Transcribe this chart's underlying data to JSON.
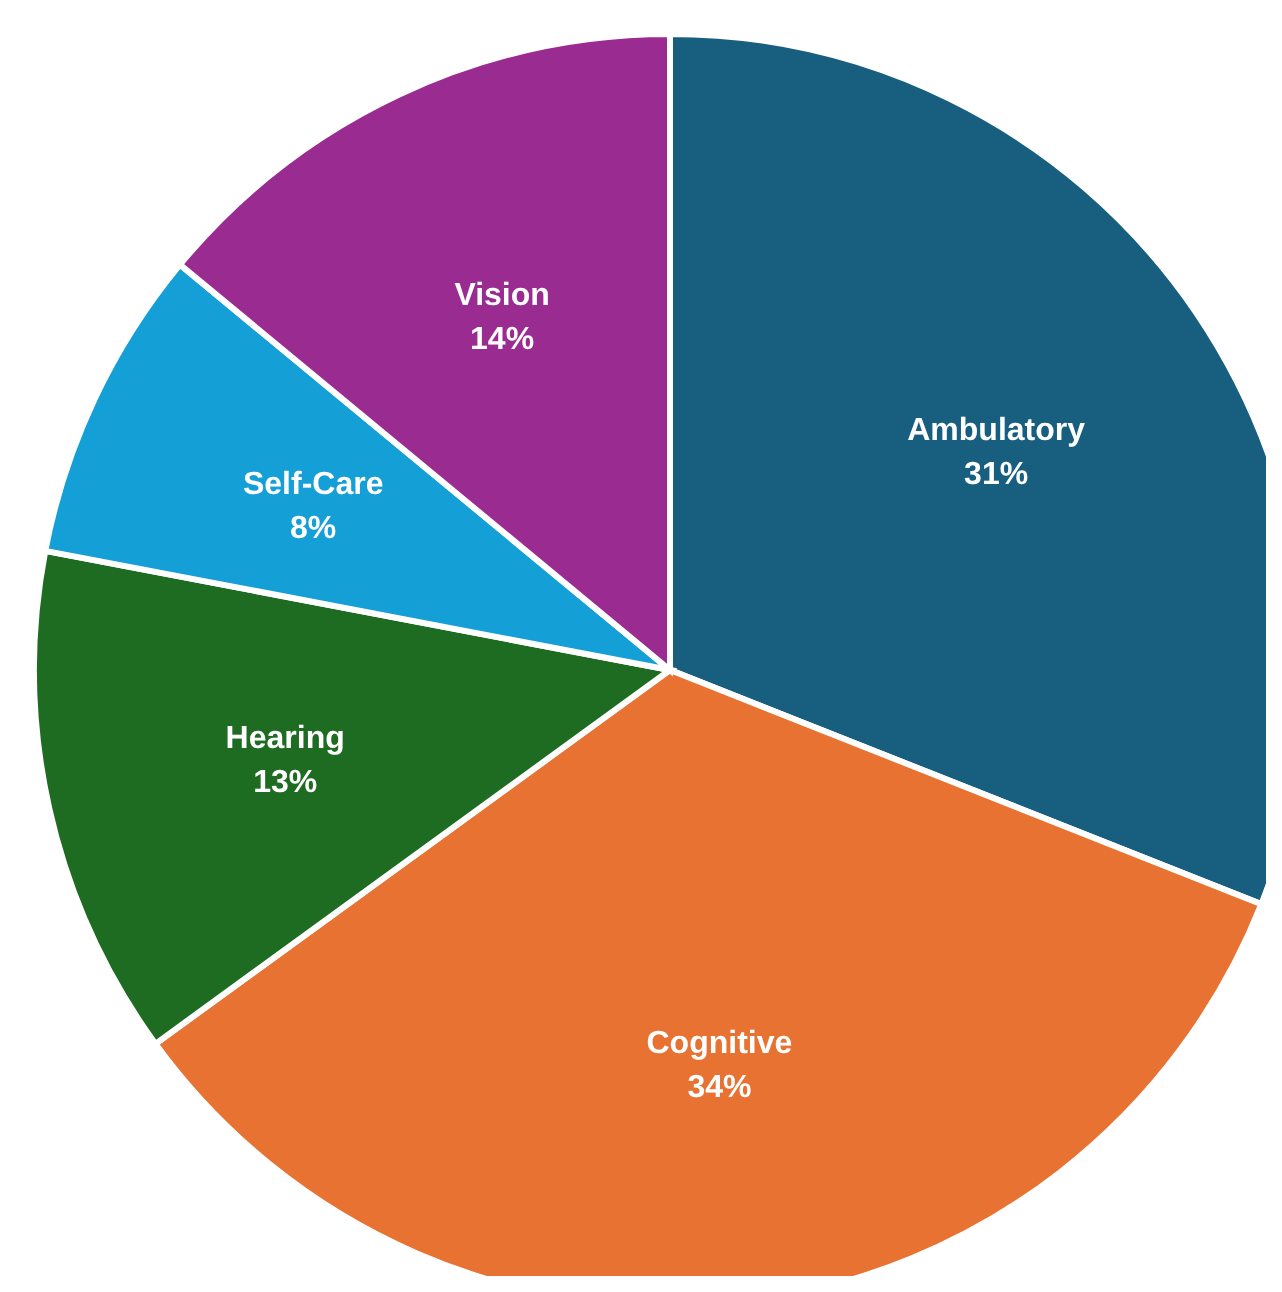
{
  "chart_data": {
    "type": "pie",
    "categories": [
      "Ambulatory",
      "Cognitive",
      "Hearing",
      "Self-Care",
      "Vision"
    ],
    "values": [
      31,
      34,
      13,
      8,
      14
    ],
    "colors": [
      "#175e7f",
      "#e87232",
      "#1e6b22",
      "#159fd7",
      "#9a2b90"
    ],
    "value_labels": [
      "31%",
      "34%",
      "13%",
      "8%",
      "14%"
    ],
    "legend": false
  }
}
